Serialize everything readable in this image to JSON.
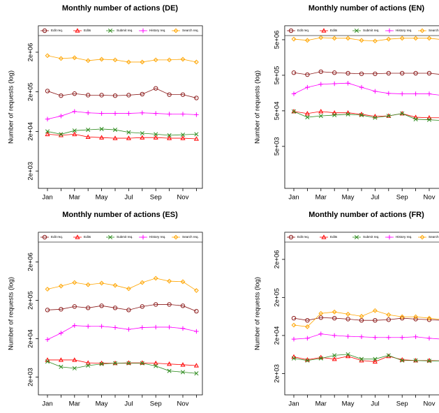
{
  "chart_data": [
    {
      "type": "line",
      "title": "Monthly number of actions (DE)",
      "ylabel": "Number of requests  (log)",
      "log_y": true,
      "legend": "top",
      "categories": [
        "Jan",
        null,
        "Mar",
        null,
        "May",
        null,
        "Jul",
        null,
        "Sep",
        null,
        "Nov",
        null
      ],
      "ylim": [
        730,
        9300000
      ],
      "yticks": [
        {
          "value": 2000,
          "label": "2e+03"
        },
        {
          "value": 20000,
          "label": "2e+04"
        },
        {
          "value": 200000,
          "label": "2e+05"
        },
        {
          "value": 2000000,
          "label": "2e+06"
        }
      ],
      "series": [
        {
          "name": "Edit req.",
          "color": "#8b1a1a",
          "marker": "circle",
          "values": [
            210000,
            160000,
            180000,
            165000,
            165000,
            160000,
            165000,
            175000,
            245000,
            170000,
            170000,
            140000
          ]
        },
        {
          "name": "Edits",
          "color": "#ff0000",
          "marker": "triangle",
          "values": [
            17000,
            16000,
            17000,
            14500,
            14000,
            13500,
            13500,
            14000,
            14000,
            13500,
            13500,
            13000
          ]
        },
        {
          "name": "Submit req.",
          "color": "#2e8b1e",
          "marker": "cross",
          "values": [
            20000,
            17000,
            21000,
            22000,
            23000,
            22000,
            19000,
            18000,
            17000,
            16000,
            16500,
            17000
          ]
        },
        {
          "name": "History req.",
          "color": "#ff00ff",
          "marker": "plus",
          "values": [
            41000,
            49000,
            64000,
            59000,
            57000,
            57000,
            57000,
            59000,
            57000,
            55000,
            55000,
            53000
          ]
        },
        {
          "name": "Search req.",
          "color": "#ffa500",
          "marker": "diamond",
          "values": [
            1640000,
            1390000,
            1450000,
            1230000,
            1330000,
            1280000,
            1130000,
            1130000,
            1280000,
            1280000,
            1330000,
            1130000
          ]
        }
      ]
    },
    {
      "type": "line",
      "title": "Monthly number of actions (EN)",
      "ylabel": "Number of requests  (log)",
      "log_y": true,
      "legend": "top",
      "categories": [
        "Jan",
        null,
        "Mar",
        null,
        "May",
        null,
        "Jul",
        null,
        "Sep",
        null,
        "Nov",
        null
      ],
      "ylim": [
        330,
        12300000
      ],
      "yticks": [
        {
          "value": 5000,
          "label": "5e+03"
        },
        {
          "value": 50000,
          "label": "5e+04"
        },
        {
          "value": 500000,
          "label": "5e+05"
        },
        {
          "value": 5000000,
          "label": "5e+06"
        }
      ],
      "series": [
        {
          "name": "Edit req.",
          "color": "#8b1a1a",
          "marker": "circle",
          "values": [
            590000,
            520000,
            630000,
            590000,
            570000,
            550000,
            550000,
            570000,
            570000,
            570000,
            570000,
            520000
          ]
        },
        {
          "name": "Edits",
          "color": "#ff0000",
          "marker": "triangle",
          "values": [
            48000,
            42000,
            48000,
            44000,
            44000,
            40000,
            35000,
            36000,
            42000,
            33000,
            32000,
            32000
          ]
        },
        {
          "name": "Submit req.",
          "color": "#2e8b1e",
          "marker": "cross",
          "values": [
            48000,
            33000,
            36000,
            38000,
            40000,
            38000,
            32000,
            36000,
            42000,
            29000,
            28000,
            26600
          ]
        },
        {
          "name": "History req.",
          "color": "#ff00ff",
          "marker": "plus",
          "values": [
            150000,
            230000,
            280000,
            290000,
            300000,
            230000,
            177000,
            155000,
            150000,
            150000,
            150000,
            135000
          ]
        },
        {
          "name": "Search req.",
          "color": "#ffa500",
          "marker": "diamond",
          "values": [
            5200000,
            4800000,
            5700000,
            5500000,
            5500000,
            4800000,
            4600000,
            5200000,
            5500000,
            5500000,
            5500000,
            5000000
          ]
        }
      ]
    },
    {
      "type": "line",
      "title": "Monthly number of actions (ES)",
      "ylabel": "Number of requests  (log)",
      "log_y": true,
      "legend": "top",
      "categories": [
        "Jan",
        null,
        "Mar",
        null,
        "May",
        null,
        "Jul",
        null,
        "Sep",
        null,
        "Nov",
        null
      ],
      "ylim": [
        690,
        11800000
      ],
      "yticks": [
        {
          "value": 2000,
          "label": "2e+03"
        },
        {
          "value": 20000,
          "label": "2e+04"
        },
        {
          "value": 200000,
          "label": "2e+05"
        },
        {
          "value": 2000000,
          "label": "2e+06"
        }
      ],
      "series": [
        {
          "name": "Edit req.",
          "color": "#8b1a1a",
          "marker": "circle",
          "values": [
            112000,
            117000,
            138000,
            127000,
            144000,
            127000,
            112000,
            138000,
            156000,
            156000,
            144000,
            104000
          ]
        },
        {
          "name": "Edits",
          "color": "#ff0000",
          "marker": "triangle",
          "values": [
            5600,
            5600,
            5600,
            4700,
            4600,
            4600,
            4700,
            4700,
            4600,
            4400,
            4200,
            4000
          ]
        },
        {
          "name": "Submit req.",
          "color": "#2e8b1e",
          "marker": "cross",
          "values": [
            5100,
            3700,
            3400,
            4000,
            4400,
            4600,
            4600,
            4600,
            3900,
            2900,
            2700,
            2500
          ]
        },
        {
          "name": "History req.",
          "color": "#ff00ff",
          "marker": "plus",
          "values": [
            19000,
            28000,
            44000,
            42000,
            42000,
            39000,
            35000,
            39000,
            40000,
            40000,
            37000,
            31000
          ]
        },
        {
          "name": "Search req.",
          "color": "#ffa500",
          "marker": "diamond",
          "values": [
            390000,
            470000,
            580000,
            510000,
            560000,
            490000,
            400000,
            580000,
            750000,
            630000,
            610000,
            360000
          ]
        }
      ]
    },
    {
      "type": "line",
      "title": "Monthly number of actions (FR)",
      "ylabel": "Number of requests  (log)",
      "log_y": true,
      "legend": "top",
      "categories": [
        "Jan",
        null,
        "Mar",
        null,
        "May",
        null,
        "Jul",
        null,
        "Sep",
        null,
        "Nov",
        null
      ],
      "ylim": [
        550,
        10300000
      ],
      "yticks": [
        {
          "value": 2000,
          "label": "2e+03"
        },
        {
          "value": 20000,
          "label": "2e+04"
        },
        {
          "value": 200000,
          "label": "2e+05"
        },
        {
          "value": 2000000,
          "label": "2e+06"
        }
      ],
      "series": [
        {
          "name": "Edit req.",
          "color": "#8b1a1a",
          "marker": "circle",
          "values": [
            57000,
            50000,
            59000,
            57000,
            54000,
            50000,
            50000,
            52000,
            57000,
            54000,
            52000,
            50000
          ]
        },
        {
          "name": "Edits",
          "color": "#ff0000",
          "marker": "triangle",
          "values": [
            5500,
            4600,
            5300,
            4800,
            5700,
            4400,
            4100,
            5700,
            4600,
            4400,
            4400,
            4300
          ]
        },
        {
          "name": "Submit req.",
          "color": "#2e8b1e",
          "marker": "cross",
          "values": [
            5000,
            4400,
            5000,
            6000,
            6400,
            4800,
            4800,
            6000,
            4400,
            4400,
            4300,
            4300
          ]
        },
        {
          "name": "History req.",
          "color": "#ff00ff",
          "marker": "plus",
          "values": [
            16000,
            16900,
            22000,
            20000,
            19000,
            18500,
            17700,
            17700,
            17700,
            18500,
            16900,
            16000
          ]
        },
        {
          "name": "Search req.",
          "color": "#ffa500",
          "marker": "diamond",
          "values": [
            37500,
            34000,
            76000,
            83000,
            73000,
            64000,
            90000,
            70000,
            62000,
            62000,
            57000,
            52000
          ]
        }
      ]
    }
  ]
}
